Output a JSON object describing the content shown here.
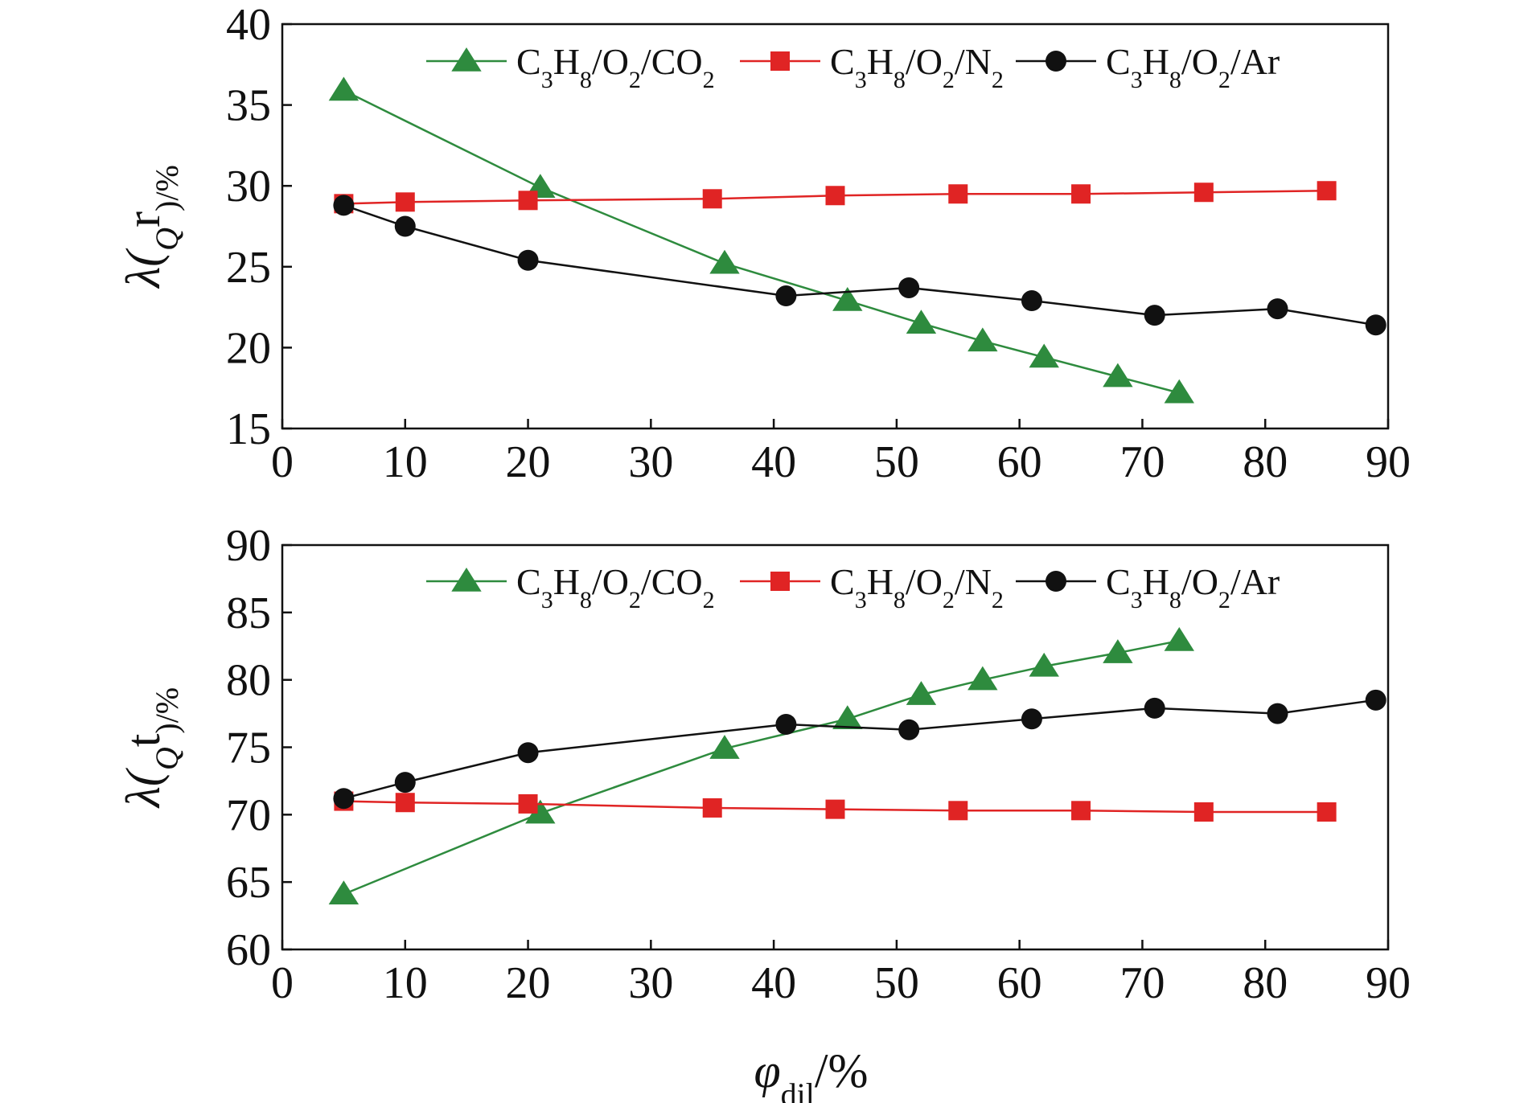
{
  "chart_data": [
    {
      "type": "line",
      "ylabel": "λ(Q_r)/%",
      "ylabel_parts": [
        "λ(",
        "Q",
        "r",
        ")/%"
      ],
      "xlim": [
        0,
        90
      ],
      "ylim": [
        15,
        40
      ],
      "xticks": [
        0,
        10,
        20,
        30,
        40,
        50,
        60,
        70,
        80,
        90
      ],
      "yticks": [
        15,
        20,
        25,
        30,
        35,
        40
      ],
      "xtick_labels": [
        "0",
        "10",
        "20",
        "30",
        "40",
        "50",
        "60",
        "70",
        "80",
        "90"
      ],
      "ytick_labels": [
        "15",
        "20",
        "25",
        "30",
        "35",
        "40"
      ],
      "legend_placement": "top-right",
      "grid": false,
      "series": [
        {
          "name": "C3H8/O2/CO2",
          "legend_parts": [
            "C",
            "3",
            "H",
            "8",
            "/O",
            "2",
            "/CO",
            "2"
          ],
          "color": "#2e8b3e",
          "marker": "triangle",
          "x": [
            5,
            21,
            36,
            46,
            52,
            57,
            62,
            68,
            73
          ],
          "y": [
            35.9,
            29.9,
            25.2,
            22.9,
            21.5,
            20.4,
            19.4,
            18.2,
            17.2
          ]
        },
        {
          "name": "C3H8/O2/N2",
          "legend_parts": [
            "C",
            "3",
            "H",
            "8",
            "/O",
            "2",
            "/N",
            "2"
          ],
          "color": "#e02424",
          "marker": "square",
          "x": [
            5,
            10,
            20,
            35,
            45,
            55,
            65,
            75,
            85
          ],
          "y": [
            28.9,
            29.0,
            29.1,
            29.2,
            29.4,
            29.5,
            29.5,
            29.6,
            29.7
          ]
        },
        {
          "name": "C3H8/O2/Ar",
          "legend_parts": [
            "C",
            "3",
            "H",
            "8",
            "/O",
            "2",
            "/Ar",
            ""
          ],
          "color": "#111111",
          "marker": "circle",
          "x": [
            5,
            10,
            20,
            41,
            51,
            61,
            71,
            81,
            89
          ],
          "y": [
            28.8,
            27.5,
            25.4,
            23.2,
            23.7,
            22.9,
            22.0,
            22.4,
            21.4
          ]
        }
      ]
    },
    {
      "type": "line",
      "ylabel": "λ(Q_t)/%",
      "ylabel_parts": [
        "λ(",
        "Q",
        "t",
        ")/%"
      ],
      "xlabel": "φ_dil/%",
      "xlabel_parts": [
        "φ",
        "dil",
        "/%"
      ],
      "xlim": [
        0,
        90
      ],
      "ylim": [
        60,
        90
      ],
      "xticks": [
        0,
        10,
        20,
        30,
        40,
        50,
        60,
        70,
        80,
        90
      ],
      "yticks": [
        60,
        65,
        70,
        75,
        80,
        85,
        90
      ],
      "xtick_labels": [
        "0",
        "10",
        "20",
        "30",
        "40",
        "50",
        "60",
        "70",
        "80",
        "90"
      ],
      "ytick_labels": [
        "60",
        "65",
        "70",
        "75",
        "80",
        "85",
        "90"
      ],
      "legend_placement": "top-right",
      "grid": false,
      "series": [
        {
          "name": "C3H8/O2/CO2",
          "legend_parts": [
            "C",
            "3",
            "H",
            "8",
            "/O",
            "2",
            "/CO",
            "2"
          ],
          "color": "#2e8b3e",
          "marker": "triangle",
          "x": [
            5,
            21,
            36,
            46,
            52,
            57,
            62,
            68,
            73
          ],
          "y": [
            64.1,
            70.1,
            74.9,
            77.1,
            78.9,
            80.0,
            81.0,
            82.0,
            82.9
          ]
        },
        {
          "name": "C3H8/O2/N2",
          "legend_parts": [
            "C",
            "3",
            "H",
            "8",
            "/O",
            "2",
            "/N",
            "2"
          ],
          "color": "#e02424",
          "marker": "square",
          "x": [
            5,
            10,
            20,
            35,
            45,
            55,
            65,
            75,
            85
          ],
          "y": [
            71.0,
            70.9,
            70.8,
            70.5,
            70.4,
            70.3,
            70.3,
            70.2,
            70.2
          ]
        },
        {
          "name": "C3H8/O2/Ar",
          "legend_parts": [
            "C",
            "3",
            "H",
            "8",
            "/O",
            "2",
            "/Ar",
            ""
          ],
          "color": "#111111",
          "marker": "circle",
          "x": [
            5,
            10,
            20,
            41,
            51,
            61,
            71,
            81,
            89
          ],
          "y": [
            71.2,
            72.4,
            74.6,
            76.7,
            76.3,
            77.1,
            77.9,
            77.5,
            78.5
          ]
        }
      ]
    }
  ]
}
